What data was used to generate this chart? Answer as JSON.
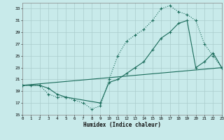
{
  "xlabel": "Humidex (Indice chaleur)",
  "bg_color": "#c8eaea",
  "grid_color": "#aacccc",
  "line_color": "#1a6b5a",
  "xlim": [
    0,
    23
  ],
  "ylim": [
    15,
    34
  ],
  "xticks": [
    0,
    1,
    2,
    3,
    4,
    5,
    6,
    7,
    8,
    9,
    10,
    11,
    12,
    13,
    14,
    15,
    16,
    17,
    18,
    19,
    20,
    21,
    22,
    23
  ],
  "yticks": [
    15,
    17,
    19,
    21,
    23,
    25,
    27,
    29,
    31,
    33
  ],
  "series1_x": [
    0,
    1,
    2,
    3,
    4,
    5,
    6,
    7,
    8,
    9,
    10,
    11,
    12,
    13,
    14,
    15,
    16,
    17,
    18,
    19,
    20,
    21,
    22,
    23
  ],
  "series1_y": [
    20,
    20,
    20,
    18.5,
    18,
    18,
    17.5,
    17,
    16,
    16.5,
    21,
    25,
    27.5,
    28.5,
    29.5,
    31,
    33,
    33.5,
    32.5,
    32,
    31,
    27,
    25,
    23
  ],
  "series2_x": [
    0,
    2,
    3,
    4,
    5,
    9,
    10,
    11,
    12,
    13,
    14,
    15,
    16,
    17,
    18,
    19,
    20,
    21,
    22,
    23
  ],
  "series2_y": [
    20,
    20,
    19.5,
    18.5,
    18,
    17,
    20.5,
    21,
    22,
    23,
    24,
    26,
    28,
    29,
    30.5,
    31,
    23,
    24,
    25.5,
    23
  ],
  "series3_x": [
    0,
    23
  ],
  "series3_y": [
    20,
    23
  ],
  "marker_size": 2.5,
  "lw": 0.8
}
